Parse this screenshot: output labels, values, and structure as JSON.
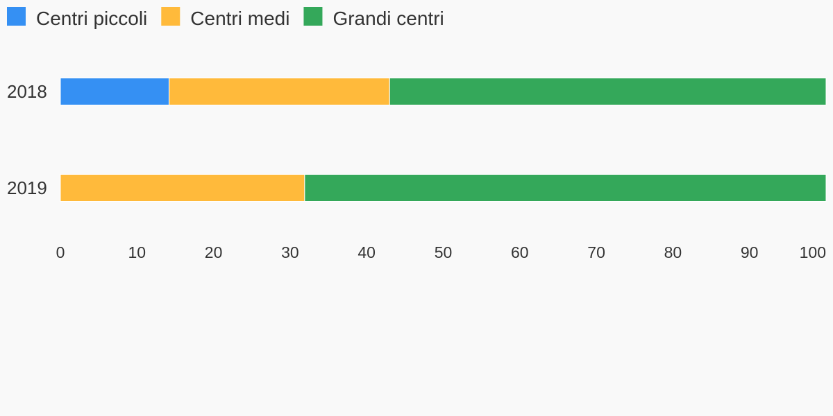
{
  "chart_data": {
    "type": "bar",
    "orientation": "horizontal",
    "stacked": true,
    "categories": [
      "2018",
      "2019"
    ],
    "series": [
      {
        "name": "Centri piccoli",
        "color": "#3590f3",
        "values": [
          14.2,
          0
        ]
      },
      {
        "name": "Centri medi",
        "color": "#ffba3b",
        "values": [
          28.8,
          31.9
        ]
      },
      {
        "name": "Grandi centri",
        "color": "#34a85a",
        "values": [
          57.0,
          68.1
        ]
      }
    ],
    "xlim": [
      0,
      100
    ],
    "xticks": [
      0,
      10,
      20,
      30,
      40,
      50,
      60,
      70,
      80,
      90,
      100
    ],
    "title": "",
    "xlabel": "",
    "ylabel": "",
    "grid": false,
    "legend": "top-left"
  }
}
